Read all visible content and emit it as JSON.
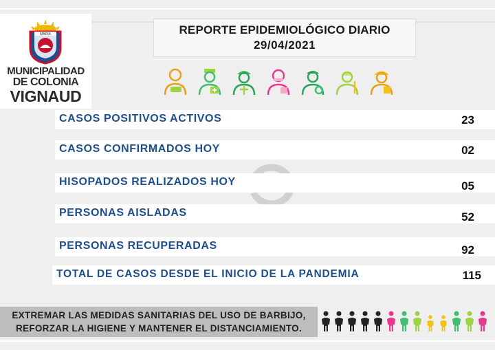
{
  "logo": {
    "top_text": "MARIA",
    "line1": "MUNICIPALIDAD",
    "line2": "DE COLONIA",
    "line3": "VIGNAUD"
  },
  "header": {
    "title": "REPORTE EPIDEMIOLÓGICO DIARIO",
    "date": "29/04/2021"
  },
  "workers_icons": [
    "food-worker-icon",
    "nurse-icon",
    "builder-icon",
    "caregiver-icon",
    "delivery-worker-icon",
    "teacher-icon",
    "firefighter-icon"
  ],
  "stats": [
    {
      "label": "CASOS POSITIVOS ACTIVOS",
      "value": "23"
    },
    {
      "label": "CASOS CONFIRMADOS HOY",
      "value": "02"
    },
    {
      "label": "HISOPADOS REALIZADOS HOY",
      "value": "05"
    },
    {
      "label": "PERSONAS AISLADAS",
      "value": "52"
    },
    {
      "label": "PERSONAS RECUPERADAS",
      "value": "92"
    },
    {
      "label": "TOTAL DE CASOS DESDE EL INICIO DE LA PANDEMIA",
      "value": "115"
    }
  ],
  "banner": {
    "line1": "EXTREMAR LAS MEDIDAS SANITARIAS DEL USO DE BARBIJO,",
    "line2": "REFORZAR LA HIGIENE Y MANTENER EL DISTANCIAMIENTO."
  },
  "colors": {
    "label_blue": "#1f4e8c",
    "banner_gray": "#bdbdbd",
    "people": [
      "#222222",
      "#222222",
      "#222222",
      "#222222",
      "#222222",
      "#e8388f",
      "#3fbf6f",
      "#9fd343",
      "#f2c21b",
      "#f2c21b",
      "#3fbf6f",
      "#9fd343",
      "#e8388f"
    ]
  }
}
